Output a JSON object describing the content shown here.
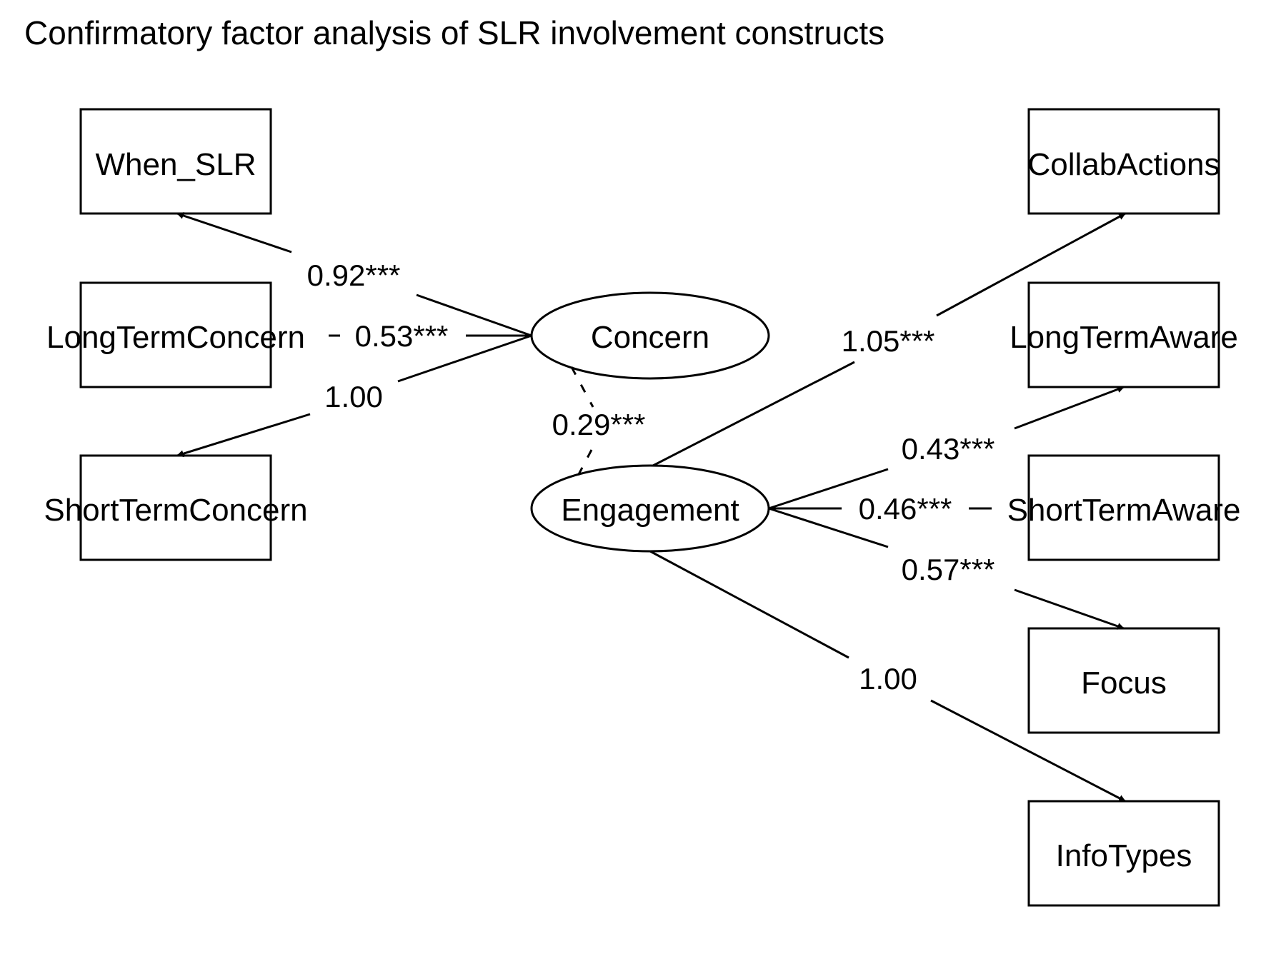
{
  "title": "Confirmatory factor analysis of SLR involvement constructs",
  "latents": [
    {
      "id": "concern",
      "label": "Concern"
    },
    {
      "id": "engagement",
      "label": "Engagement"
    }
  ],
  "indicators": [
    {
      "id": "when-slr",
      "label": "When_SLR"
    },
    {
      "id": "long-term-concern",
      "label": "LongTermConcern"
    },
    {
      "id": "short-term-concern",
      "label": "ShortTermConcern"
    },
    {
      "id": "collab-actions",
      "label": "CollabActions"
    },
    {
      "id": "long-term-aware",
      "label": "LongTermAware"
    },
    {
      "id": "short-term-aware",
      "label": "ShortTermAware"
    },
    {
      "id": "focus",
      "label": "Focus"
    },
    {
      "id": "info-types",
      "label": "InfoTypes"
    }
  ],
  "loadings": [
    {
      "from": "concern",
      "to": "when-slr",
      "label": "0.92***"
    },
    {
      "from": "concern",
      "to": "long-term-concern",
      "label": "0.53***"
    },
    {
      "from": "concern",
      "to": "short-term-concern",
      "label": "1.00"
    },
    {
      "from": "engagement",
      "to": "collab-actions",
      "label": "1.05***"
    },
    {
      "from": "engagement",
      "to": "long-term-aware",
      "label": "0.43***"
    },
    {
      "from": "engagement",
      "to": "short-term-aware",
      "label": "0.46***"
    },
    {
      "from": "engagement",
      "to": "focus",
      "label": "0.57***"
    },
    {
      "from": "engagement",
      "to": "info-types",
      "label": "1.00"
    }
  ],
  "covariance": {
    "from": "concern",
    "to": "engagement",
    "label": "0.29***"
  }
}
